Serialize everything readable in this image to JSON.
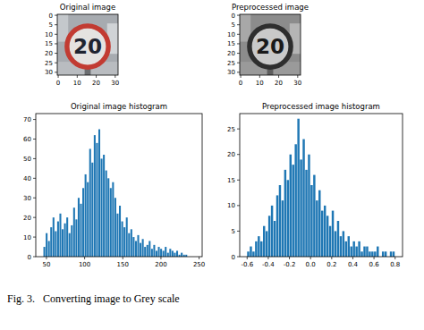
{
  "chart_data": [
    {
      "type": "image",
      "title": "Original image",
      "sign_text": "20",
      "color": "#c23b32",
      "xlim": [
        -0.5,
        31.5
      ],
      "ylim": [
        31.5,
        -0.5
      ],
      "xticks": [
        0,
        10,
        20,
        30
      ],
      "yticks": [
        0,
        5,
        10,
        15,
        20,
        25,
        30
      ]
    },
    {
      "type": "image",
      "title": "Preprocessed image",
      "sign_text": "20",
      "color": "#2e2e2e",
      "xlim": [
        -0.5,
        31.5
      ],
      "ylim": [
        31.5,
        -0.5
      ],
      "xticks": [
        0,
        10,
        20,
        30
      ],
      "yticks": [
        0,
        5,
        10,
        15,
        20,
        25,
        30
      ]
    },
    {
      "type": "histogram",
      "title": "Original image histogram",
      "color": "#1f77b4",
      "bins": [
        46,
        49,
        52,
        55,
        58,
        61,
        64,
        67,
        70,
        73,
        76,
        79,
        82,
        85,
        88,
        91,
        94,
        97,
        100,
        103,
        106,
        109,
        112,
        115,
        118,
        121,
        124,
        127,
        130,
        133,
        136,
        139,
        142,
        145,
        148,
        151,
        154,
        157,
        160,
        163,
        166,
        169,
        172,
        175,
        178,
        181,
        184,
        187,
        190,
        193,
        196,
        199,
        202,
        205,
        208,
        211,
        214,
        217,
        220,
        223,
        226,
        229,
        232,
        235
      ],
      "values": [
        5,
        12,
        8,
        15,
        20,
        13,
        18,
        22,
        14,
        17,
        20,
        12,
        16,
        25,
        19,
        30,
        27,
        35,
        42,
        38,
        55,
        48,
        62,
        58,
        65,
        50,
        52,
        44,
        40,
        35,
        38,
        30,
        22,
        26,
        18,
        15,
        20,
        12,
        14,
        10,
        8,
        11,
        7,
        9,
        5,
        6,
        8,
        4,
        6,
        3,
        5,
        4,
        3,
        5,
        2,
        4,
        3,
        2,
        3,
        1,
        2,
        1,
        1
      ],
      "xlim": [
        36,
        254
      ],
      "ylim": [
        0,
        73
      ],
      "xticks": [
        50,
        100,
        150,
        200,
        250
      ],
      "yticks": [
        0,
        10,
        20,
        30,
        40,
        50,
        60,
        70
      ]
    },
    {
      "type": "histogram",
      "title": "Preprocessed image histogram",
      "color": "#1f77b4",
      "bins": [
        -0.6,
        -0.575,
        -0.55,
        -0.525,
        -0.5,
        -0.475,
        -0.45,
        -0.425,
        -0.4,
        -0.375,
        -0.35,
        -0.325,
        -0.3,
        -0.275,
        -0.25,
        -0.225,
        -0.2,
        -0.175,
        -0.15,
        -0.125,
        -0.1,
        -0.075,
        -0.05,
        -0.025,
        0,
        0.025,
        0.05,
        0.075,
        0.1,
        0.125,
        0.15,
        0.175,
        0.2,
        0.225,
        0.25,
        0.275,
        0.3,
        0.325,
        0.35,
        0.375,
        0.4,
        0.425,
        0.45,
        0.475,
        0.5,
        0.525,
        0.55,
        0.575,
        0.6,
        0.625,
        0.65,
        0.675,
        0.7,
        0.725,
        0.75,
        0.775,
        0.8
      ],
      "values": [
        1,
        2,
        1,
        3,
        4,
        3,
        6,
        5,
        8,
        10,
        7,
        12,
        14,
        11,
        17,
        15,
        20,
        18,
        22,
        27,
        19,
        23,
        17,
        20,
        14,
        16,
        11,
        13,
        9,
        10,
        8,
        6,
        9,
        5,
        7,
        4,
        5,
        3,
        4,
        2,
        3,
        2,
        3,
        1,
        2,
        2,
        1,
        1,
        1,
        2,
        0,
        1,
        1,
        0,
        1,
        1
      ],
      "xlim": [
        -0.67,
        0.87
      ],
      "ylim": [
        0,
        28
      ],
      "xticks": [
        -0.6,
        -0.4,
        -0.2,
        {
          "value": 0,
          "label": "0.0"
        },
        0.2,
        0.4,
        0.6,
        0.8
      ],
      "yticks": [
        0,
        5,
        10,
        15,
        20,
        25
      ]
    }
  ],
  "caption": "Fig. 3.   Converting image to Grey scale"
}
